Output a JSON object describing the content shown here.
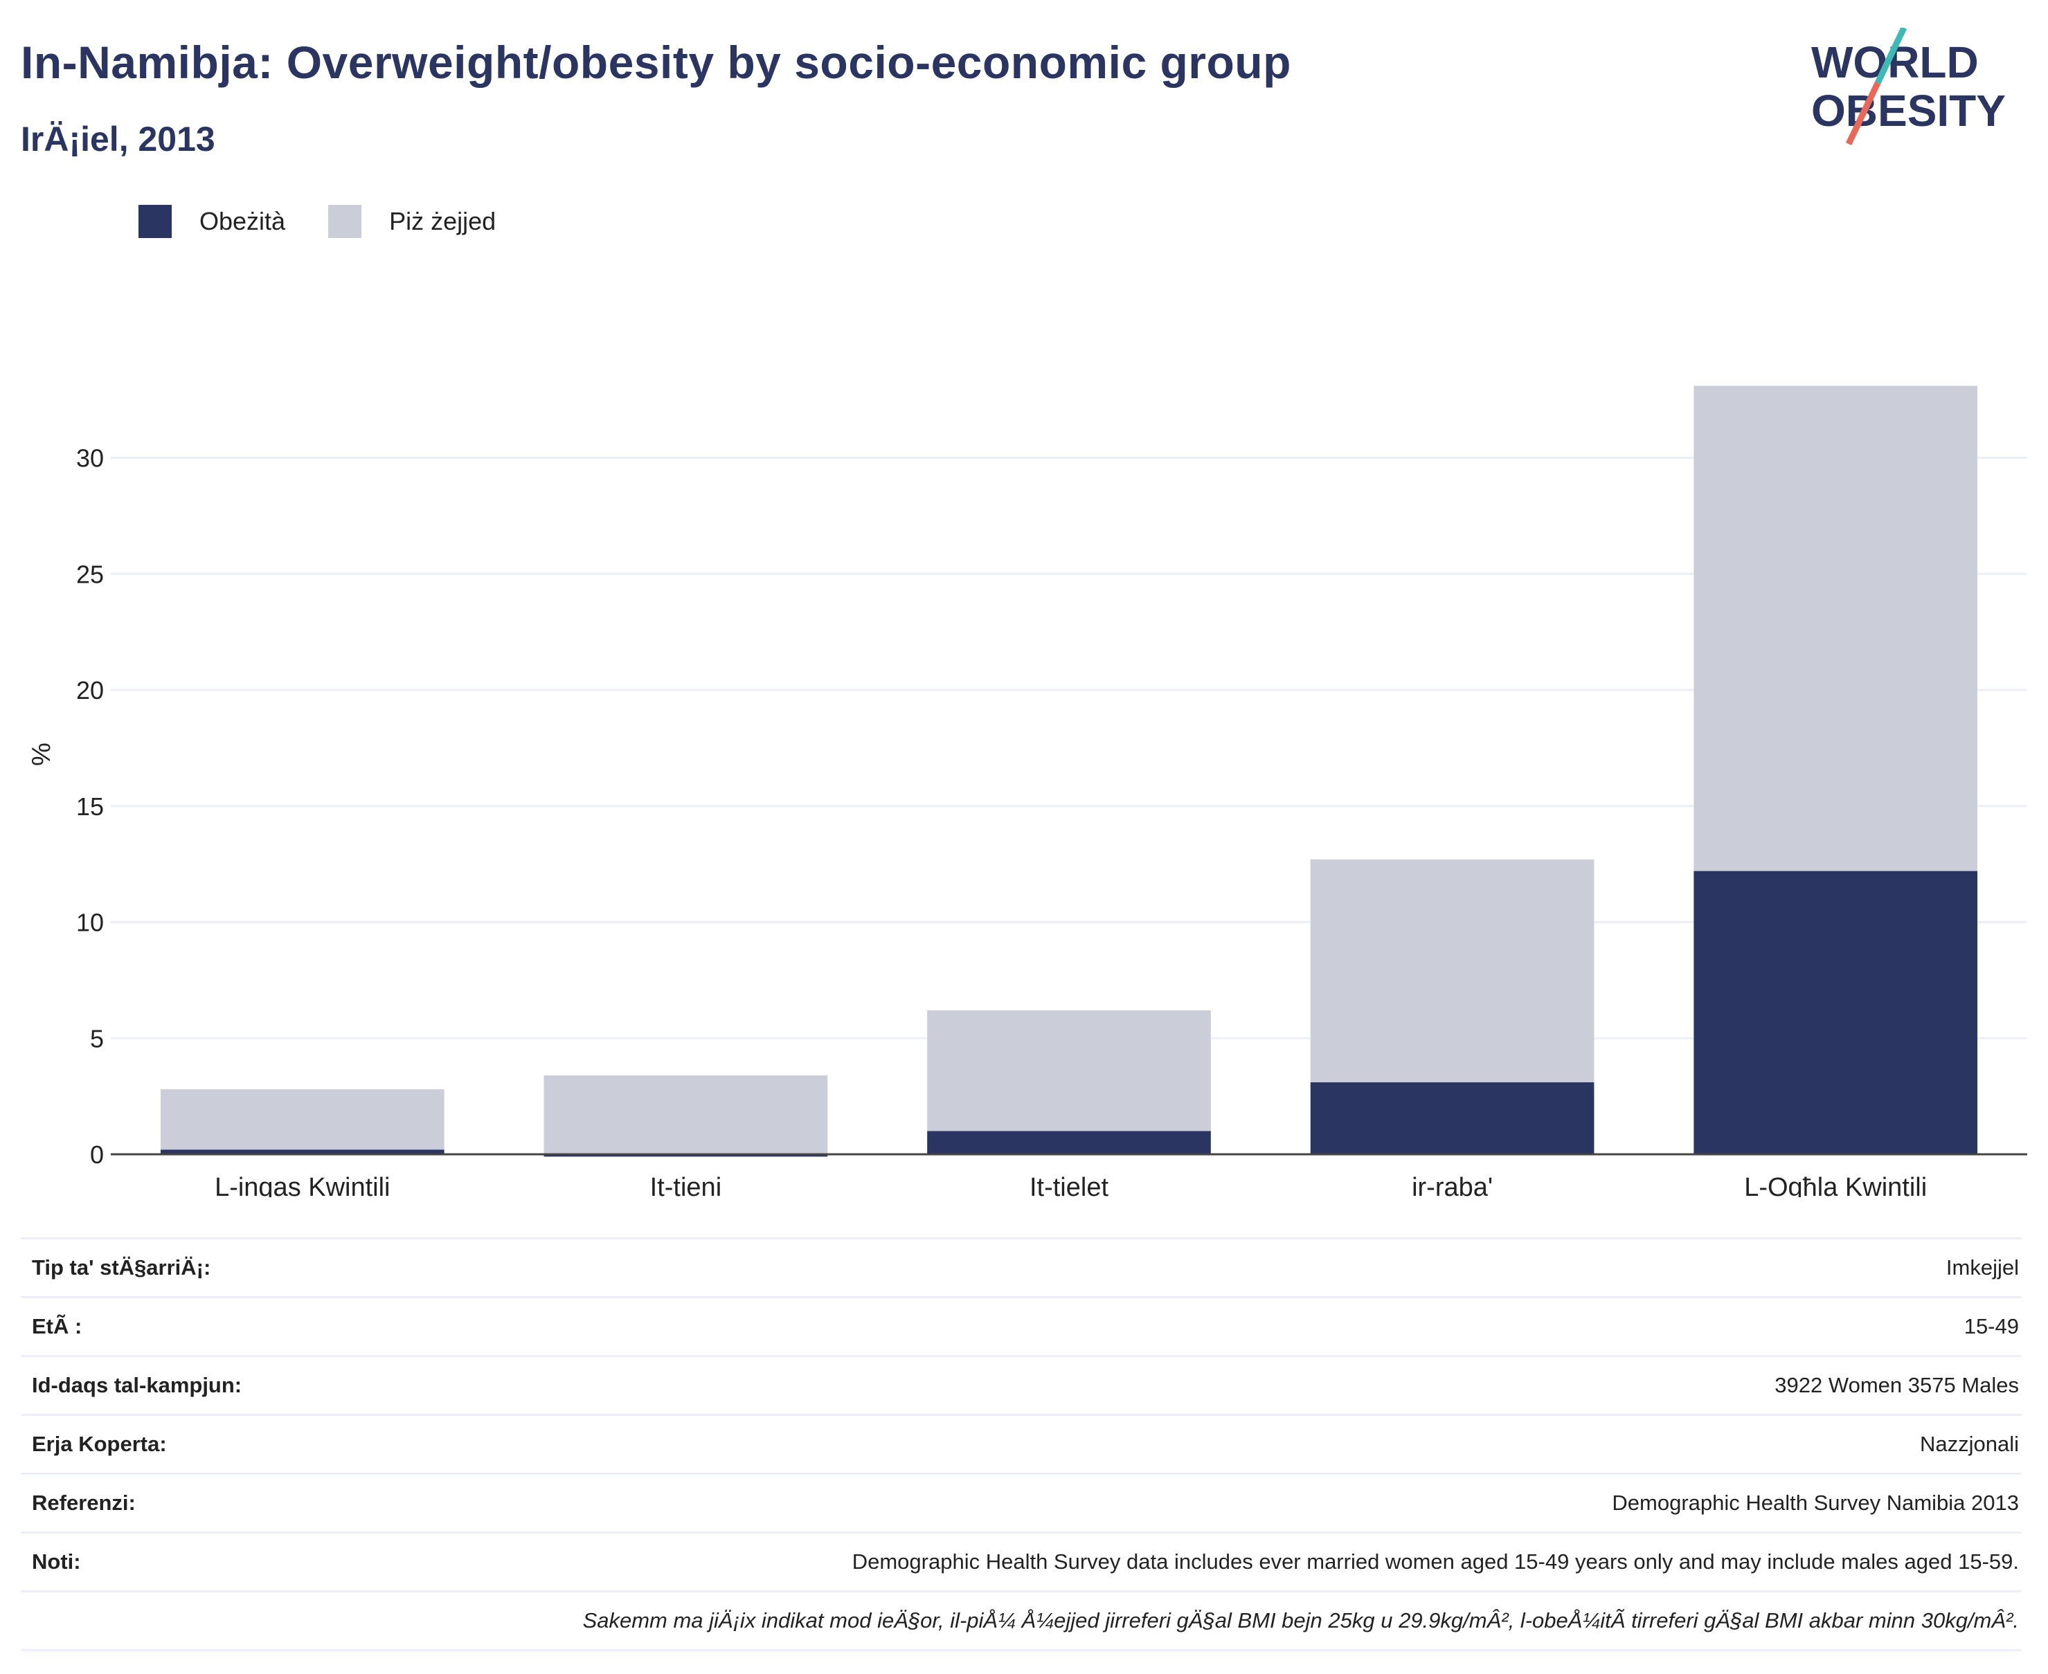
{
  "header": {
    "title": "In-Namibja: Overweight/obesity by socio-economic group",
    "subtitle": "IrÄ¡iel, 2013",
    "logo_line1": "WORLD",
    "logo_line2": "OBESITY"
  },
  "colors": {
    "obese": "#2a3561",
    "overweight": "#cbcdd8",
    "title": "#2a3561",
    "logo_teal": "#3fb9b5",
    "logo_coral": "#e8685a"
  },
  "legend": [
    {
      "label": "Obeżità",
      "color": "#2a3561"
    },
    {
      "label": "Piż żejjed",
      "color": "#cbcdd8"
    }
  ],
  "chart_data": {
    "type": "bar",
    "stacked": true,
    "categories": [
      "L-inqas Kwintili",
      "It-tieni",
      "It-tielet",
      "ir-raba'",
      "L-Ogħla Kwintili"
    ],
    "series": [
      {
        "name": "Obeżità",
        "values": [
          0.2,
          -0.1,
          1.0,
          3.1,
          12.2
        ]
      },
      {
        "name": "Piż żejjed",
        "values": [
          2.6,
          3.4,
          5.2,
          9.6,
          20.9
        ]
      }
    ],
    "ylabel": "%",
    "ylim": [
      -0.1,
      34
    ],
    "yticks": [
      0,
      5,
      10,
      15,
      20,
      25,
      30
    ],
    "grid": true,
    "legend_position": "top-left"
  },
  "table": [
    {
      "label": "Tip ta' stÄ§arriÄ¡:",
      "value": "Imkejjel"
    },
    {
      "label": "EtÃ :",
      "value": "15-49"
    },
    {
      "label": "Id-daqs tal-kampjun:",
      "value": "3922 Women 3575 Males"
    },
    {
      "label": "Erja Koperta:",
      "value": "Nazzjonali"
    },
    {
      "label": "Referenzi:",
      "value": "Demographic Health Survey Namibia 2013"
    },
    {
      "label": "Noti:",
      "value": "Demographic Health Survey data includes ever married women aged 15-49 years only and may include males aged 15-59."
    },
    {
      "label": "",
      "value": "Sakemm ma jiÄ¡ix indikat mod ieÄ§or, il-piÅ¼ Å¼ejjed jirreferi gÄ§al BMI bejn 25kg u 29.9kg/mÂ², l-obeÅ¼itÃ  tirreferi gÄ§al BMI akbar minn 30kg/mÂ²."
    }
  ]
}
